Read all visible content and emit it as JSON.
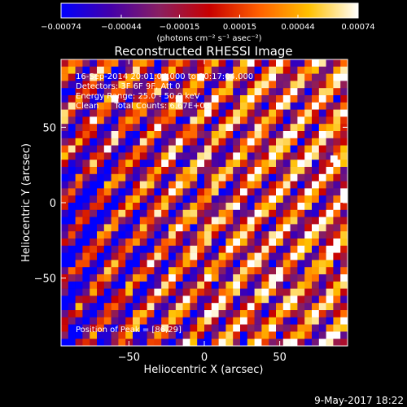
{
  "chart_data": {
    "type": "heatmap",
    "title": "Reconstructed RHESSI Image",
    "xlabel": "Heliocentric X (arcsec)",
    "ylabel": "Heliocentric Y (arcsec)",
    "xlim": [
      -95,
      95
    ],
    "ylim": [
      -95,
      95
    ],
    "x_ticks": [
      -50,
      0,
      50
    ],
    "y_ticks": [
      -50,
      0,
      50
    ],
    "tick_labels_x": [
      "−50",
      "0",
      "50"
    ],
    "tick_labels_y": [
      "−50",
      "0",
      "50"
    ],
    "colorbar": {
      "min": -0.00074,
      "max": 0.00074,
      "tick_values": [
        -0.00074,
        -0.00044,
        -0.00015,
        0.00015,
        0.00044,
        0.00074
      ],
      "tick_labels": [
        "−0.00074",
        "−0.00044",
        "−0.00015",
        "0.00015",
        "0.00044",
        "0.00074"
      ],
      "unit_label": "(photons cm⁻² s⁻¹ asec⁻²)"
    },
    "annotations": [
      "16-Sep-2014 20:01:04.000 to 20:17:04.000",
      "Detectors: 3F 6F 9F, Att 0",
      "Energy Range: 25.0 - 50.0 keV",
      "Clean      Total Counts: 6.67E+03"
    ],
    "peak_annotation": "Position of Peak = [86,29]",
    "peak_position": [
      86,
      29
    ],
    "colors": [
      "#0000ff",
      "#4400aa",
      "#8a2060",
      "#c80000",
      "#ff6000",
      "#ffc000",
      "#ffffff"
    ]
  },
  "footer": {
    "timestamp": "9-May-2017 18:22"
  }
}
